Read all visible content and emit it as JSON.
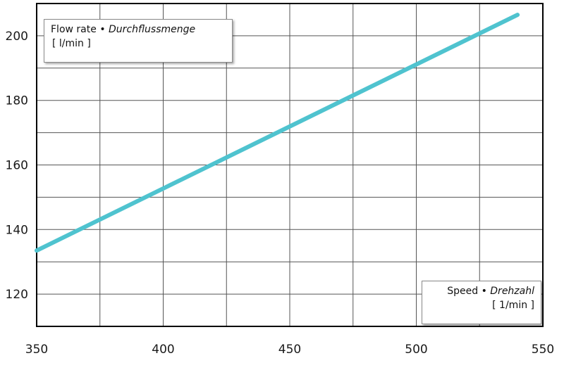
{
  "chart_data": {
    "type": "line",
    "x_tick_labels": [
      "350",
      "400",
      "450",
      "500",
      "550"
    ],
    "y_tick_labels": [
      "120",
      "140",
      "160",
      "180",
      "200"
    ],
    "xlim": [
      350,
      550
    ],
    "ylim": [
      110,
      210
    ],
    "x_grid_step": 25,
    "y_grid_step": 10,
    "grid": true,
    "series": [
      {
        "x": [
          350,
          540
        ],
        "y": [
          133.5,
          206.5
        ],
        "color": "#4fc3cf"
      }
    ],
    "y_legend": {
      "name": "Flow rate",
      "separator": "•",
      "name_de": "Durchflussmenge",
      "unit": "[ l/min ]",
      "placement": "top-left"
    },
    "x_legend": {
      "name": "Speed",
      "separator": "•",
      "name_de": "Drehzahl",
      "unit": "[ 1/min ]",
      "placement": "bottom-right"
    }
  }
}
